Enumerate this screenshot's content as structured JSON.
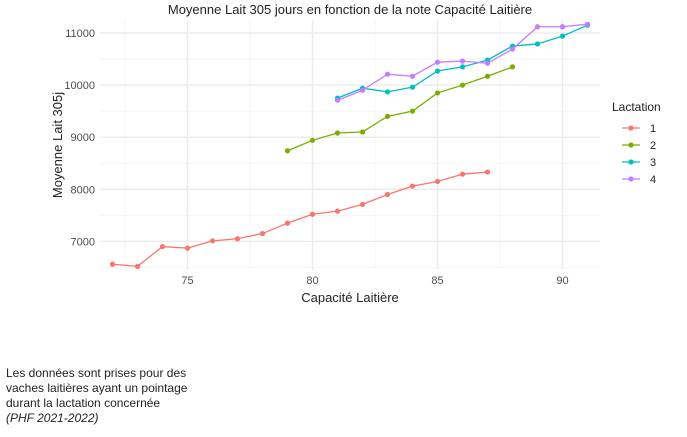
{
  "chart_data": {
    "type": "line",
    "title": "Moyenne Lait 305 jours en fonction de la note Capacité Laitière",
    "xlabel": "Capacité Laitière",
    "ylabel": "Moyenne Lait 305j",
    "xlim": [
      71.5,
      91.5
    ],
    "ylim": [
      6450,
      11250
    ],
    "xticks": [
      75,
      80,
      85,
      90
    ],
    "yticks": [
      7000,
      8000,
      9000,
      10000,
      11000
    ],
    "grid": true,
    "legend_title": "Lactation",
    "legend_position": "right",
    "series": [
      {
        "name": "1",
        "color": "#F8766D",
        "x": [
          72,
          73,
          74,
          75,
          76,
          77,
          78,
          79,
          80,
          81,
          82,
          83,
          84,
          85,
          86,
          87
        ],
        "y": [
          6560,
          6520,
          6900,
          6870,
          7010,
          7050,
          7150,
          7350,
          7520,
          7580,
          7710,
          7900,
          8060,
          8150,
          8290,
          8330
        ]
      },
      {
        "name": "2",
        "color": "#7CAE00",
        "x": [
          79,
          80,
          81,
          82,
          83,
          84,
          85,
          86,
          87,
          88
        ],
        "y": [
          8740,
          8940,
          9080,
          9100,
          9400,
          9500,
          9850,
          10000,
          10170,
          10350
        ]
      },
      {
        "name": "3",
        "color": "#00BFC4",
        "x": [
          81,
          82,
          83,
          84,
          85,
          86,
          87,
          88,
          89,
          90,
          91
        ],
        "y": [
          9750,
          9940,
          9870,
          9960,
          10270,
          10350,
          10480,
          10750,
          10790,
          10940,
          11150
        ]
      },
      {
        "name": "4",
        "color": "#C77CFF",
        "x": [
          81,
          82,
          83,
          84,
          85,
          86,
          87,
          88,
          89,
          90,
          91
        ],
        "y": [
          9710,
          9900,
          10210,
          10170,
          10440,
          10460,
          10420,
          10690,
          11120,
          11120,
          11170
        ]
      }
    ]
  },
  "note": {
    "lines": [
      "Les données sont prises pour des",
      "vaches laitières ayant un pointage",
      "durant la lactation concernée"
    ],
    "source": "(PHF 2021-2022)"
  }
}
